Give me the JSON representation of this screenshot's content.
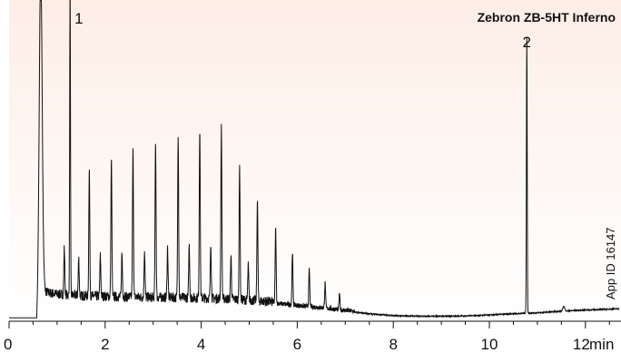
{
  "chart_data": {
    "type": "line",
    "title": "Zebron ZB-5HT Inferno",
    "xlabel": "min",
    "ylabel": "",
    "xlim": [
      0,
      12.7
    ],
    "ylim": [
      0,
      100
    ],
    "x_ticks": [
      "0",
      "2",
      "4",
      "6",
      "8",
      "10",
      "12"
    ],
    "x_tick_values": [
      0,
      2,
      4,
      6,
      8,
      10,
      12
    ],
    "grid": false,
    "background_gradient": [
      "#fdeee6",
      "#ffffff"
    ],
    "line_color": "#111111",
    "annotations": [
      {
        "label": "1",
        "x": 1.27
      },
      {
        "label": "2",
        "x": 10.78
      }
    ],
    "app_id": "App ID 16147",
    "series": [
      {
        "baseline": [
          [
            0.0,
            0.5
          ],
          [
            0.58,
            0.5
          ],
          [
            0.64,
            16
          ],
          [
            0.7,
            9
          ],
          [
            0.8,
            8
          ],
          [
            1.0,
            7.5
          ],
          [
            1.5,
            7
          ],
          [
            2.0,
            6.8
          ],
          [
            2.5,
            6.6
          ],
          [
            3.0,
            6.5
          ],
          [
            3.5,
            6.4
          ],
          [
            4.0,
            6.3
          ],
          [
            4.5,
            6.0
          ],
          [
            5.0,
            5.6
          ],
          [
            5.5,
            5.0
          ],
          [
            6.0,
            4.2
          ],
          [
            6.5,
            3.5
          ],
          [
            7.0,
            2.6
          ],
          [
            7.5,
            1.8
          ],
          [
            8.0,
            1.2
          ],
          [
            8.5,
            1.0
          ],
          [
            9.0,
            1.0
          ],
          [
            9.5,
            1.1
          ],
          [
            10.0,
            1.4
          ],
          [
            10.5,
            1.8
          ],
          [
            11.0,
            2.1
          ],
          [
            11.5,
            2.6
          ],
          [
            12.0,
            3.0
          ],
          [
            12.7,
            3.4
          ]
        ],
        "peaks": [
          {
            "x": 0.66,
            "h": 100,
            "w": 0.03
          },
          {
            "x": 1.27,
            "h": 100,
            "w": 0.008
          },
          {
            "x": 1.67,
            "h": 41,
            "w": 0.01
          },
          {
            "x": 2.13,
            "h": 44,
            "w": 0.01
          },
          {
            "x": 2.58,
            "h": 47,
            "w": 0.01
          },
          {
            "x": 3.05,
            "h": 50,
            "w": 0.01
          },
          {
            "x": 3.52,
            "h": 53,
            "w": 0.01
          },
          {
            "x": 3.97,
            "h": 55,
            "w": 0.01
          },
          {
            "x": 4.42,
            "h": 55,
            "w": 0.01
          },
          {
            "x": 4.8,
            "h": 43,
            "w": 0.01
          },
          {
            "x": 5.17,
            "h": 32,
            "w": 0.01
          },
          {
            "x": 5.55,
            "h": 24,
            "w": 0.01
          },
          {
            "x": 5.9,
            "h": 17,
            "w": 0.01
          },
          {
            "x": 6.25,
            "h": 12,
            "w": 0.01
          },
          {
            "x": 6.58,
            "h": 8,
            "w": 0.01
          },
          {
            "x": 6.88,
            "h": 5,
            "w": 0.01
          },
          {
            "x": 1.15,
            "h": 15,
            "w": 0.01
          },
          {
            "x": 1.45,
            "h": 12,
            "w": 0.01
          },
          {
            "x": 1.9,
            "h": 13,
            "w": 0.01
          },
          {
            "x": 2.35,
            "h": 14,
            "w": 0.01
          },
          {
            "x": 2.82,
            "h": 15,
            "w": 0.01
          },
          {
            "x": 3.3,
            "h": 16,
            "w": 0.01
          },
          {
            "x": 3.75,
            "h": 17,
            "w": 0.01
          },
          {
            "x": 4.2,
            "h": 18,
            "w": 0.01
          },
          {
            "x": 4.62,
            "h": 14,
            "w": 0.01
          },
          {
            "x": 4.98,
            "h": 11,
            "w": 0.01
          },
          {
            "x": 10.78,
            "h": 89,
            "w": 0.008
          },
          {
            "x": 11.55,
            "h": 1.5,
            "w": 0.02
          }
        ]
      }
    ]
  }
}
